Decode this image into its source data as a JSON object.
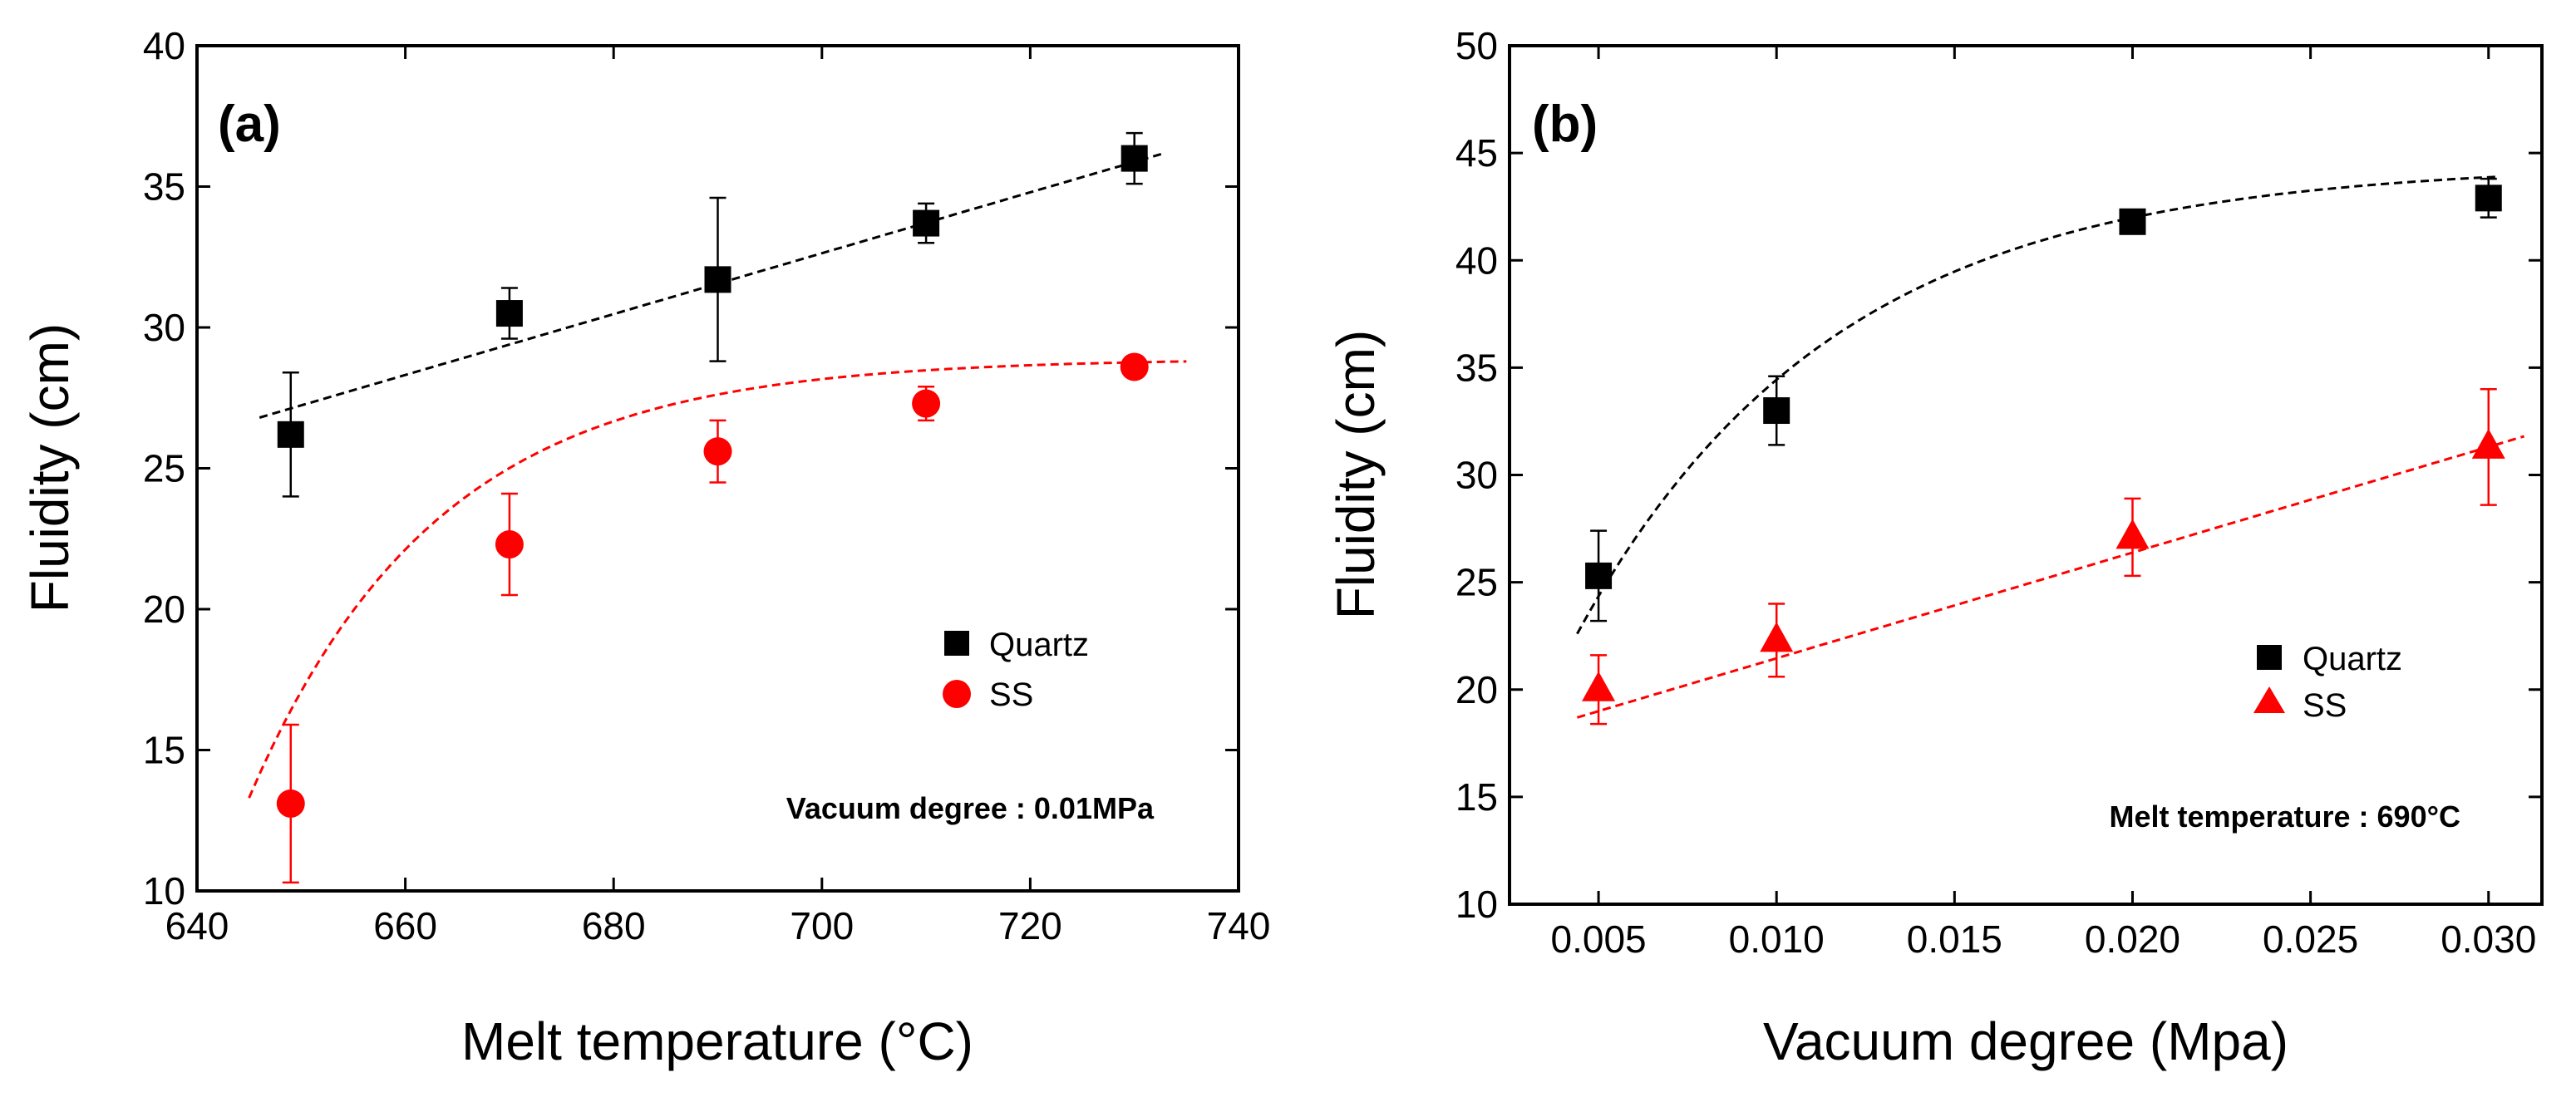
{
  "chart_data": [
    {
      "type": "scatter",
      "panel_label": "(a)",
      "xlabel": "Melt temperature (°C)",
      "ylabel": "Fluidity (cm)",
      "xlim": [
        640,
        740
      ],
      "ylim": [
        10,
        40
      ],
      "xticks": [
        640,
        660,
        680,
        700,
        720,
        740
      ],
      "yticks": [
        10,
        15,
        20,
        25,
        30,
        35,
        40
      ],
      "xtick_labels": [
        "640",
        "660",
        "680",
        "700",
        "720",
        "740"
      ],
      "ytick_labels": [
        "10",
        "15",
        "20",
        "25",
        "30",
        "35",
        "40"
      ],
      "annotation": "Vacuum degree : 0.01MPa",
      "legend_position": "lower-right",
      "series": [
        {
          "name": "Quartz",
          "marker": "square",
          "color": "#000000",
          "x": [
            649,
            670,
            690,
            710,
            730
          ],
          "y": [
            26.2,
            30.5,
            31.7,
            33.7,
            36.0
          ],
          "err": [
            2.2,
            0.9,
            2.9,
            0.7,
            0.9
          ],
          "fit": {
            "kind": "linear",
            "x_range": [
              646,
              733
            ],
            "p": [
              26.8,
              36.2
            ],
            "color": "#000000"
          }
        },
        {
          "name": "SS",
          "marker": "circle",
          "color": "#ff0000",
          "x": [
            649,
            670,
            690,
            710,
            730
          ],
          "y": [
            13.1,
            22.3,
            25.6,
            27.3,
            28.6
          ],
          "err": [
            2.8,
            1.8,
            1.1,
            0.6,
            0.0
          ],
          "fit": {
            "kind": "exp-saturation",
            "x_range": [
              645,
              735
            ],
            "p": [
              28.9,
              15.6,
              645,
              18.0
            ],
            "color": "#ff0000"
          }
        }
      ]
    },
    {
      "type": "scatter",
      "panel_label": "(b)",
      "xlabel": "Vacuum degree (Mpa)",
      "ylabel": "Fluidity (cm)",
      "xlim": [
        0.0025,
        0.0315
      ],
      "ylim": [
        10,
        50
      ],
      "xticks": [
        0.005,
        0.01,
        0.015,
        0.02,
        0.025,
        0.03
      ],
      "yticks": [
        10,
        15,
        20,
        25,
        30,
        35,
        40,
        45,
        50
      ],
      "xtick_labels": [
        "0.005",
        "0.010",
        "0.015",
        "0.020",
        "0.025",
        "0.030"
      ],
      "ytick_labels": [
        "10",
        "15",
        "20",
        "25",
        "30",
        "35",
        "40",
        "45",
        "50"
      ],
      "annotation": "Melt temperature : 690°C",
      "legend_position": "lower-right",
      "series": [
        {
          "name": "Quartz",
          "marker": "square",
          "color": "#000000",
          "x": [
            0.005,
            0.01,
            0.02,
            0.03
          ],
          "y": [
            25.3,
            33.0,
            41.8,
            42.9
          ],
          "err": [
            2.1,
            1.6,
            0.2,
            0.9
          ],
          "fit": {
            "kind": "exp-saturation",
            "x_range": [
              0.0044,
              0.0302
            ],
            "p": [
              44.5,
              21.9,
              0.0044,
              0.0072
            ],
            "color": "#000000"
          }
        },
        {
          "name": "SS",
          "marker": "triangle",
          "color": "#ff0000",
          "x": [
            0.005,
            0.01,
            0.02,
            0.03
          ],
          "y": [
            20.0,
            22.3,
            27.1,
            31.3
          ],
          "err": [
            1.6,
            1.7,
            1.8,
            2.7
          ],
          "fit": {
            "kind": "linear",
            "x_range": [
              0.0044,
              0.031
            ],
            "p": [
              18.7,
              31.8
            ],
            "color": "#ff0000"
          }
        }
      ]
    }
  ]
}
